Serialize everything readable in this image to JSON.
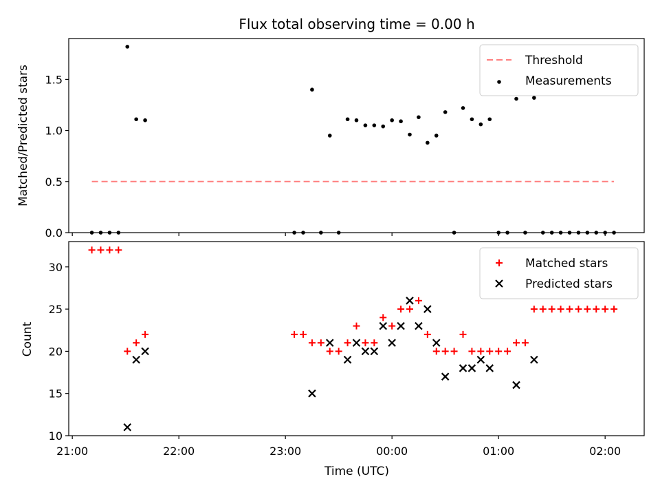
{
  "chart_data": [
    {
      "type": "scatter",
      "title": "Flux total observing time = 0.00 h",
      "xlabel": "",
      "ylabel": "Matched/Predicted stars",
      "ylim": [
        0,
        1.9
      ],
      "yticks": [
        0.0,
        0.5,
        1.0,
        1.5
      ],
      "ytick_labels": [
        "0.0",
        "0.5",
        "1.0",
        "1.5"
      ],
      "xlim": [
        "20:58",
        "02:22"
      ],
      "xticks": [
        "21:00",
        "22:00",
        "23:00",
        "00:00",
        "01:00",
        "02:00"
      ],
      "xtick_labels_visible": false,
      "legend_position": "top-right",
      "threshold": {
        "name": "Threshold",
        "color": "#ff7f7f",
        "style": "dashed",
        "y": 0.5,
        "x_start": "21:11",
        "x_end": "02:05"
      },
      "series": [
        {
          "name": "Measurements",
          "color": "#000000",
          "marker": "dot",
          "points": [
            [
              "21:11",
              0.0
            ],
            [
              "21:16",
              0.0
            ],
            [
              "21:21",
              0.0
            ],
            [
              "21:26",
              0.0
            ],
            [
              "21:31",
              1.82
            ],
            [
              "21:36",
              1.11
            ],
            [
              "21:41",
              1.1
            ],
            [
              "23:05",
              0.0
            ],
            [
              "23:10",
              0.0
            ],
            [
              "23:15",
              1.4
            ],
            [
              "23:20",
              0.0
            ],
            [
              "23:25",
              0.95
            ],
            [
              "23:30",
              0.0
            ],
            [
              "23:35",
              1.11
            ],
            [
              "23:40",
              1.1
            ],
            [
              "23:45",
              1.05
            ],
            [
              "23:50",
              1.05
            ],
            [
              "23:55",
              1.04
            ],
            [
              "00:00",
              1.1
            ],
            [
              "00:05",
              1.09
            ],
            [
              "00:10",
              0.96
            ],
            [
              "00:15",
              1.13
            ],
            [
              "00:20",
              0.88
            ],
            [
              "00:25",
              0.95
            ],
            [
              "00:30",
              1.18
            ],
            [
              "00:35",
              0.0
            ],
            [
              "00:40",
              1.22
            ],
            [
              "00:45",
              1.11
            ],
            [
              "00:50",
              1.06
            ],
            [
              "00:55",
              1.11
            ],
            [
              "01:00",
              0.0
            ],
            [
              "01:05",
              0.0
            ],
            [
              "01:10",
              1.31
            ],
            [
              "01:15",
              0.0
            ],
            [
              "01:20",
              1.32
            ],
            [
              "01:25",
              0.0
            ],
            [
              "01:30",
              0.0
            ],
            [
              "01:35",
              0.0
            ],
            [
              "01:40",
              0.0
            ],
            [
              "01:45",
              0.0
            ],
            [
              "01:50",
              0.0
            ],
            [
              "01:55",
              0.0
            ],
            [
              "02:00",
              0.0
            ],
            [
              "02:05",
              0.0
            ]
          ]
        }
      ]
    },
    {
      "type": "scatter",
      "title": "",
      "xlabel": "Time (UTC)",
      "ylabel": "Count",
      "ylim": [
        10,
        33
      ],
      "yticks": [
        10,
        15,
        20,
        25,
        30
      ],
      "ytick_labels": [
        "10",
        "15",
        "20",
        "25",
        "30"
      ],
      "xlim": [
        "20:58",
        "02:22"
      ],
      "xticks": [
        "21:00",
        "22:00",
        "23:00",
        "00:00",
        "01:00",
        "02:00"
      ],
      "xtick_labels": [
        "21:00",
        "22:00",
        "23:00",
        "00:00",
        "01:00",
        "02:00"
      ],
      "legend_position": "top-right",
      "series": [
        {
          "name": "Matched stars",
          "color": "#ff0000",
          "marker": "plus",
          "points": [
            [
              "21:11",
              32
            ],
            [
              "21:16",
              32
            ],
            [
              "21:21",
              32
            ],
            [
              "21:26",
              32
            ],
            [
              "21:31",
              20
            ],
            [
              "21:36",
              21
            ],
            [
              "21:41",
              22
            ],
            [
              "23:05",
              22
            ],
            [
              "23:10",
              22
            ],
            [
              "23:15",
              21
            ],
            [
              "23:20",
              21
            ],
            [
              "23:25",
              20
            ],
            [
              "23:30",
              20
            ],
            [
              "23:35",
              21
            ],
            [
              "23:40",
              23
            ],
            [
              "23:45",
              21
            ],
            [
              "23:50",
              21
            ],
            [
              "23:55",
              24
            ],
            [
              "00:00",
              23
            ],
            [
              "00:05",
              25
            ],
            [
              "00:10",
              25
            ],
            [
              "00:15",
              26
            ],
            [
              "00:20",
              22
            ],
            [
              "00:25",
              20
            ],
            [
              "00:30",
              20
            ],
            [
              "00:35",
              20
            ],
            [
              "00:40",
              22
            ],
            [
              "00:45",
              20
            ],
            [
              "00:50",
              20
            ],
            [
              "00:55",
              20
            ],
            [
              "01:00",
              20
            ],
            [
              "01:05",
              20
            ],
            [
              "01:10",
              21
            ],
            [
              "01:15",
              21
            ],
            [
              "01:20",
              25
            ],
            [
              "01:25",
              25
            ],
            [
              "01:30",
              25
            ],
            [
              "01:35",
              25
            ],
            [
              "01:40",
              25
            ],
            [
              "01:45",
              25
            ],
            [
              "01:50",
              25
            ],
            [
              "01:55",
              25
            ],
            [
              "02:00",
              25
            ],
            [
              "02:05",
              25
            ]
          ]
        },
        {
          "name": "Predicted stars",
          "color": "#000000",
          "marker": "x",
          "points": [
            [
              "21:31",
              11
            ],
            [
              "21:36",
              19
            ],
            [
              "21:41",
              20
            ],
            [
              "23:15",
              15
            ],
            [
              "23:25",
              21
            ],
            [
              "23:35",
              19
            ],
            [
              "23:40",
              21
            ],
            [
              "23:45",
              20
            ],
            [
              "23:50",
              20
            ],
            [
              "23:55",
              23
            ],
            [
              "00:00",
              21
            ],
            [
              "00:05",
              23
            ],
            [
              "00:10",
              26
            ],
            [
              "00:15",
              23
            ],
            [
              "00:20",
              25
            ],
            [
              "00:25",
              21
            ],
            [
              "00:30",
              17
            ],
            [
              "00:40",
              18
            ],
            [
              "00:45",
              18
            ],
            [
              "00:50",
              19
            ],
            [
              "00:55",
              18
            ],
            [
              "01:10",
              16
            ],
            [
              "01:20",
              19
            ]
          ]
        }
      ]
    }
  ]
}
